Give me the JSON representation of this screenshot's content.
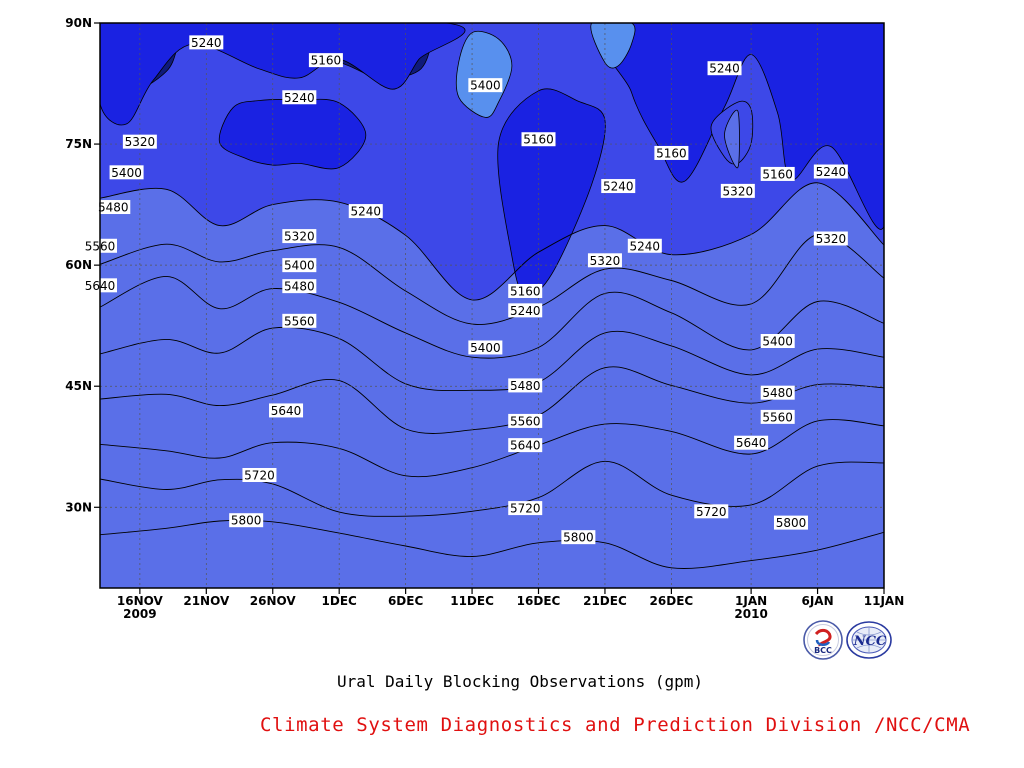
{
  "chart_data": {
    "type": "heatmap",
    "title": "Ural Daily Blocking Observations (gpm)",
    "credit": "Climate System Diagnostics and Prediction Division /NCC/CMA",
    "x_ticks": [
      {
        "label": "16NOV",
        "sub": "2009",
        "date": "2009-11-16"
      },
      {
        "label": "21NOV",
        "sub": "",
        "date": "2009-11-21"
      },
      {
        "label": "26NOV",
        "sub": "",
        "date": "2009-11-26"
      },
      {
        "label": "1DEC",
        "sub": "",
        "date": "2009-12-01"
      },
      {
        "label": "6DEC",
        "sub": "",
        "date": "2009-12-06"
      },
      {
        "label": "11DEC",
        "sub": "",
        "date": "2009-12-11"
      },
      {
        "label": "16DEC",
        "sub": "",
        "date": "2009-12-16"
      },
      {
        "label": "21DEC",
        "sub": "",
        "date": "2009-12-21"
      },
      {
        "label": "26DEC",
        "sub": "",
        "date": "2009-12-26"
      },
      {
        "label": "1JAN",
        "sub": "2010",
        "date": "2010-01-01"
      },
      {
        "label": "6JAN",
        "sub": "",
        "date": "2010-01-06"
      },
      {
        "label": "11JAN",
        "sub": "",
        "date": "2010-01-11"
      }
    ],
    "y_ticks": [
      {
        "label": "30N",
        "value": 30
      },
      {
        "label": "45N",
        "value": 45
      },
      {
        "label": "60N",
        "value": 60
      },
      {
        "label": "75N",
        "value": 75
      },
      {
        "label": "90N",
        "value": 90
      }
    ],
    "x_range": [
      "2009-11-13",
      "2010-01-11"
    ],
    "y_range": [
      20,
      90
    ],
    "grid": true,
    "contour_levels": [
      5160,
      5240,
      5320,
      5400,
      5480,
      5560,
      5640,
      5720,
      5800
    ],
    "fill_colors": {
      "below_5160": "#0f1a7a",
      "5160_5240": "#1a22e2",
      "5240_5320": "#3d48e8",
      "5320_5400": "#5a6fe8",
      "5400_5480": "#5890ee",
      "5480_5560": "#60c0f8",
      "5560_5640": "#fafa82",
      "5640_5720": "#fae0a0",
      "5720_5800": "#f8a266",
      "5800_5880": "#fa7040",
      "above_5880": "#f06e74"
    },
    "dates": [
      "2009-11-13",
      "2009-11-18",
      "2009-11-22",
      "2009-11-26",
      "2009-12-01",
      "2009-12-06",
      "2009-12-11",
      "2009-12-16",
      "2009-12-21",
      "2009-12-26",
      "2010-01-01",
      "2010-01-06",
      "2010-01-11"
    ],
    "boundaries": [
      {
        "level": 5800,
        "lat": [
          26.6,
          27.4,
          28.3,
          28.2,
          26.8,
          25.2,
          23.9,
          25.6,
          25.6,
          22.5,
          23.4,
          24.7,
          26.9
        ]
      },
      {
        "level": 5720,
        "lat": [
          33.5,
          32.2,
          33.4,
          32.9,
          29.4,
          28.9,
          29.5,
          31.2,
          35.7,
          31.5,
          30.3,
          35.1,
          35.5
        ]
      },
      {
        "level": 5640,
        "lat": [
          37.8,
          37.0,
          36.1,
          38.0,
          37.3,
          33.9,
          34.9,
          37.7,
          40.3,
          39.4,
          36.6,
          40.7,
          40.1
        ]
      },
      {
        "level": 5560,
        "lat": [
          43.4,
          44.0,
          42.6,
          43.9,
          45.7,
          39.7,
          39.6,
          41.4,
          47.3,
          45.1,
          42.9,
          45.2,
          44.8
        ]
      },
      {
        "level": 5480,
        "lat": [
          49.0,
          50.8,
          49.1,
          52.2,
          50.9,
          45.3,
          44.5,
          45.5,
          51.6,
          50.0,
          46.4,
          49.6,
          48.6
        ]
      },
      {
        "level": 5400,
        "lat": [
          54.8,
          58.6,
          54.6,
          57.1,
          55.4,
          51.6,
          48.6,
          49.8,
          56.5,
          54.1,
          49.5,
          55.5,
          52.8
        ]
      },
      {
        "level": 5320,
        "lat": [
          60.1,
          62.6,
          60.4,
          61.8,
          62.2,
          56.8,
          52.7,
          54.8,
          59.5,
          58.1,
          55.2,
          63.8,
          58.4
        ]
      },
      {
        "level": 5240,
        "lat": [
          68.3,
          69.4,
          64.9,
          67.5,
          67.8,
          63.7,
          55.7,
          61.6,
          64.9,
          61.3,
          63.8,
          70.2,
          62.5
        ]
      }
    ],
    "contour_labels": [
      {
        "text": "5240",
        "date": "2009-11-21",
        "lat": 87.6
      },
      {
        "text": "5160",
        "date": "2009-11-30",
        "lat": 85.4
      },
      {
        "text": "5240",
        "date": "2009-11-28",
        "lat": 80.8
      },
      {
        "text": "5400",
        "date": "2009-12-12",
        "lat": 82.3
      },
      {
        "text": "5240",
        "date": "2009-12-30",
        "lat": 84.4
      },
      {
        "text": "5320",
        "date": "2009-11-16",
        "lat": 75.3
      },
      {
        "text": "5160",
        "date": "2009-12-16",
        "lat": 75.6
      },
      {
        "text": "5160",
        "date": "2009-12-26",
        "lat": 73.9
      },
      {
        "text": "5400",
        "date": "2009-11-15",
        "lat": 71.5
      },
      {
        "text": "5240",
        "date": "2009-12-22",
        "lat": 69.8
      },
      {
        "text": "5320",
        "date": "2009-12-31",
        "lat": 69.2
      },
      {
        "text": "5160",
        "date": "2010-01-03",
        "lat": 71.3
      },
      {
        "text": "5240",
        "date": "2010-01-07",
        "lat": 71.6
      },
      {
        "text": "5480",
        "date": "2009-11-14",
        "lat": 67.2
      },
      {
        "text": "5240",
        "date": "2009-12-03",
        "lat": 66.7
      },
      {
        "text": "5320",
        "date": "2009-11-28",
        "lat": 63.6
      },
      {
        "text": "5240",
        "date": "2009-12-24",
        "lat": 62.4
      },
      {
        "text": "5560",
        "date": "2009-11-13",
        "lat": 62.4
      },
      {
        "text": "5320",
        "date": "2010-01-07",
        "lat": 63.3
      },
      {
        "text": "5400",
        "date": "2009-11-28",
        "lat": 60.0
      },
      {
        "text": "5320",
        "date": "2009-12-21",
        "lat": 60.6
      },
      {
        "text": "5640",
        "date": "2009-11-13",
        "lat": 57.5
      },
      {
        "text": "5480",
        "date": "2009-11-28",
        "lat": 57.4
      },
      {
        "text": "5160",
        "date": "2009-12-15",
        "lat": 56.8
      },
      {
        "text": "5240",
        "date": "2009-12-15",
        "lat": 54.4
      },
      {
        "text": "5560",
        "date": "2009-11-28",
        "lat": 53.1
      },
      {
        "text": "5400",
        "date": "2009-12-12",
        "lat": 49.8
      },
      {
        "text": "5400",
        "date": "2010-01-03",
        "lat": 50.6
      },
      {
        "text": "5480",
        "date": "2009-12-15",
        "lat": 45.1
      },
      {
        "text": "5480",
        "date": "2010-01-03",
        "lat": 44.2
      },
      {
        "text": "5640",
        "date": "2009-11-27",
        "lat": 42.0
      },
      {
        "text": "5560",
        "date": "2009-12-15",
        "lat": 40.7
      },
      {
        "text": "5560",
        "date": "2010-01-03",
        "lat": 41.2
      },
      {
        "text": "5640",
        "date": "2009-12-15",
        "lat": 37.7
      },
      {
        "text": "5640",
        "date": "2010-01-01",
        "lat": 38.0
      },
      {
        "text": "5720",
        "date": "2009-11-25",
        "lat": 34.0
      },
      {
        "text": "5720",
        "date": "2009-12-15",
        "lat": 29.9
      },
      {
        "text": "5720",
        "date": "2009-12-29",
        "lat": 29.5
      },
      {
        "text": "5800",
        "date": "2009-11-24",
        "lat": 28.4
      },
      {
        "text": "5800",
        "date": "2009-12-19",
        "lat": 26.3
      },
      {
        "text": "5800",
        "date": "2010-01-04",
        "lat": 28.1
      }
    ],
    "regions": [
      {
        "fill": "below_5160",
        "points": [
          [
            "2009-11-13",
            90
          ],
          [
            "2009-11-13",
            82.7
          ],
          [
            "2009-11-15",
            81.1
          ],
          [
            "2009-11-18",
            84.0
          ],
          [
            "2009-11-19",
            87.7
          ],
          [
            "2009-11-20",
            90
          ]
        ]
      },
      {
        "fill": "below_5160",
        "points": [
          [
            "2009-11-24",
            90
          ],
          [
            "2009-11-25",
            86.9
          ],
          [
            "2009-11-28",
            85.1
          ],
          [
            "2009-12-01",
            85.1
          ],
          [
            "2009-12-04",
            83.2
          ],
          [
            "2009-12-07",
            84.1
          ],
          [
            "2009-12-08",
            87.9
          ],
          [
            "2009-12-08",
            90
          ]
        ]
      },
      {
        "fill": "below_5160",
        "points": [
          [
            "2009-12-14",
            75.2
          ],
          [
            "2009-12-15",
            69.5
          ],
          [
            "2009-12-16",
            58.5
          ],
          [
            "2009-12-17",
            61.2
          ],
          [
            "2009-12-19",
            74.5
          ],
          [
            "2009-12-19",
            77.3
          ],
          [
            "2009-12-17",
            79.1
          ],
          [
            "2009-12-15",
            79.0
          ]
        ]
      },
      {
        "fill": "below_5160",
        "points": [
          [
            "2009-12-24",
            90
          ],
          [
            "2009-12-24",
            81.0
          ],
          [
            "2009-12-26",
            75.6
          ],
          [
            "2009-12-28",
            78.0
          ],
          [
            "2009-12-29",
            84.1
          ],
          [
            "2010-01-01",
            87.1
          ],
          [
            "2010-01-03",
            86.5
          ],
          [
            "2010-01-04",
            75.1
          ],
          [
            "2010-01-07",
            75.6
          ],
          [
            "2010-01-10",
            68.3
          ],
          [
            "2010-01-11",
            66.6
          ],
          [
            "2010-01-11",
            90
          ]
        ]
      },
      {
        "fill": "5160_5240",
        "points": [
          [
            "2009-11-13",
            90
          ],
          [
            "2009-11-13",
            80.0
          ],
          [
            "2009-11-15",
            77.5
          ],
          [
            "2009-11-17",
            82.9
          ],
          [
            "2009-11-20",
            87.4
          ],
          [
            "2009-11-25",
            84.3
          ],
          [
            "2009-11-28",
            83.2
          ],
          [
            "2009-12-01",
            85.5
          ],
          [
            "2009-12-05",
            81.8
          ],
          [
            "2009-12-07",
            85.5
          ],
          [
            "2009-12-09",
            90
          ]
        ]
      },
      {
        "fill": "5160_5240",
        "points": [
          [
            "2009-11-22",
            75.2
          ],
          [
            "2009-11-24",
            73.2
          ],
          [
            "2009-11-26",
            72.4
          ],
          [
            "2009-11-28",
            72.6
          ],
          [
            "2009-12-01",
            72.1
          ],
          [
            "2009-12-03",
            76.1
          ],
          [
            "2009-12-01",
            80.1
          ],
          [
            "2009-11-28",
            80.5
          ],
          [
            "2009-11-25",
            80.4
          ],
          [
            "2009-11-23",
            79.5
          ]
        ]
      },
      {
        "fill": "5160_5240",
        "points": [
          [
            "2009-12-13",
            75.2
          ],
          [
            "2009-12-14",
            61.1
          ],
          [
            "2009-12-15",
            56.4
          ],
          [
            "2009-12-17",
            58.9
          ],
          [
            "2009-12-20",
            70.0
          ],
          [
            "2009-12-21",
            78.0
          ],
          [
            "2009-12-19",
            80.3
          ],
          [
            "2009-12-16",
            81.6
          ]
        ]
      },
      {
        "fill": "5160_5240",
        "points": [
          [
            "2009-12-22",
            90
          ],
          [
            "2009-12-23",
            81.4
          ],
          [
            "2009-12-25",
            74.8
          ],
          [
            "2009-12-27",
            70.4
          ],
          [
            "2009-12-30",
            79.6
          ],
          [
            "2010-01-01",
            86.1
          ],
          [
            "2010-01-03",
            78.8
          ],
          [
            "2010-01-04",
            70.6
          ],
          [
            "2010-01-07",
            74.7
          ],
          [
            "2010-01-11",
            64.8
          ],
          [
            "2010-01-11",
            90
          ]
        ]
      },
      {
        "fill": "5240_5320",
        "points": [
          [
            "2009-12-29",
            77.3
          ],
          [
            "2009-12-30",
            73.4
          ],
          [
            "2009-12-31",
            72.6
          ],
          [
            "2010-01-01",
            75.1
          ],
          [
            "2010-01-01",
            79.3
          ],
          [
            "2009-12-31",
            80.2
          ]
        ]
      },
      {
        "fill": "5320_5400",
        "points": [
          [
            "2009-12-30",
            76.1
          ],
          [
            "2009-12-31",
            72.1
          ],
          [
            "2009-12-31",
            79.1
          ]
        ]
      },
      {
        "fill": "5400_5480",
        "points": [
          [
            "2009-12-10",
            85.2
          ],
          [
            "2009-12-10",
            80.8
          ],
          [
            "2009-12-12",
            78.3
          ],
          [
            "2009-12-13",
            80.2
          ],
          [
            "2009-12-14",
            84.7
          ],
          [
            "2009-12-13",
            88.0
          ],
          [
            "2009-12-11",
            88.8
          ]
        ]
      },
      {
        "fill": "5400_5480",
        "points": [
          [
            "2009-12-20",
            90
          ],
          [
            "2009-12-21",
            85.1
          ],
          [
            "2009-12-22",
            84.7
          ],
          [
            "2009-12-23",
            87.4
          ],
          [
            "2009-12-23",
            90
          ]
        ]
      }
    ]
  }
}
